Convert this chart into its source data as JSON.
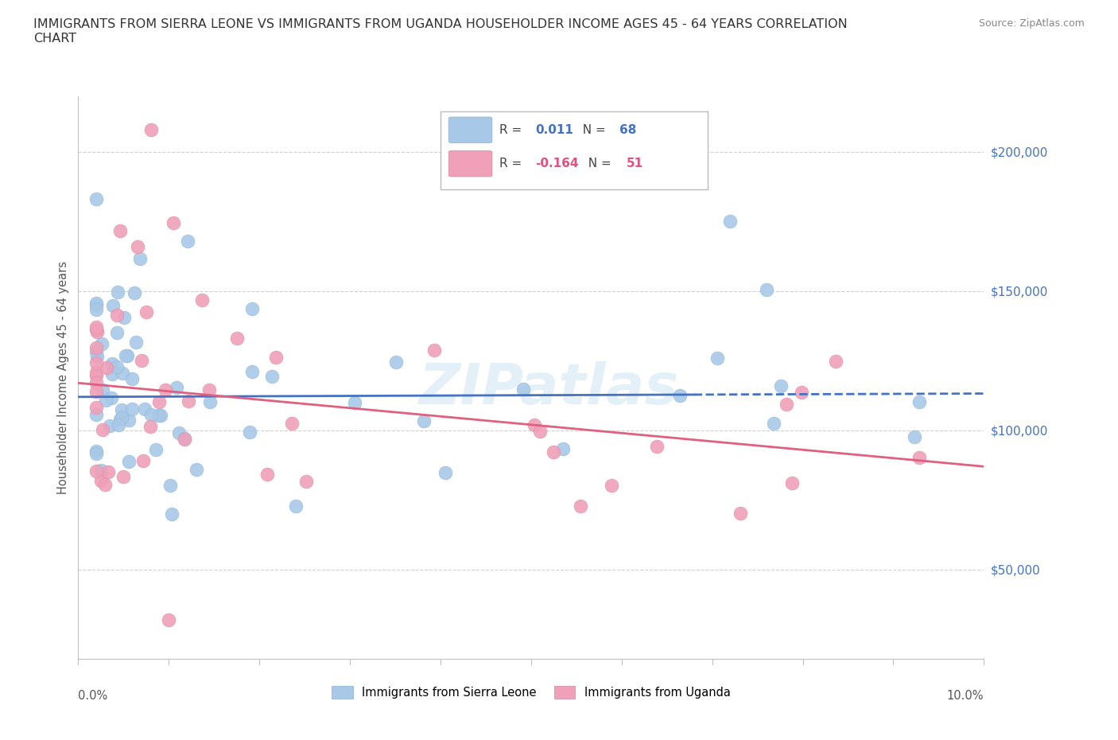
{
  "title": "IMMIGRANTS FROM SIERRA LEONE VS IMMIGRANTS FROM UGANDA HOUSEHOLDER INCOME AGES 45 - 64 YEARS CORRELATION\nCHART",
  "source": "Source: ZipAtlas.com",
  "ylabel": "Householder Income Ages 45 - 64 years",
  "xlim": [
    0.0,
    0.1
  ],
  "ylim": [
    18000,
    220000
  ],
  "yticks": [
    50000,
    100000,
    150000,
    200000
  ],
  "ytick_labels": [
    "$50,000",
    "$100,000",
    "$150,000",
    "$200,000"
  ],
  "color_sierra": "#a8c8e8",
  "color_uganda": "#f0a0b8",
  "color_sierra_line": "#4472c4",
  "color_uganda_line": "#e06080",
  "legend_r_sierra": "0.011",
  "legend_n_sierra": "68",
  "legend_r_uganda": "-0.164",
  "legend_n_uganda": "51",
  "watermark": "ZIPatlas",
  "grid_color": "#d0d0d0",
  "spine_color": "#c0c0c0"
}
